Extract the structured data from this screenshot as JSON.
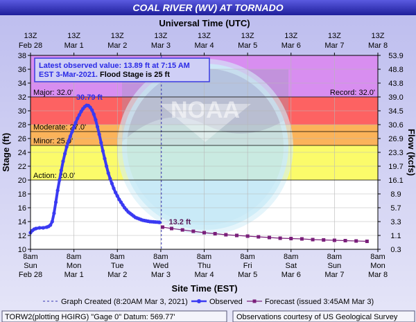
{
  "chart_data": {
    "type": "line",
    "title": "COAL RIVER (WV) AT TORNADO",
    "top_axis_title": "Universal Time (UTC)",
    "xlabel": "Site Time (EST)",
    "ylabel": "Stage (ft)",
    "y2label": "Flow (kcfs)",
    "ylim": [
      10,
      38
    ],
    "y_ticks": [
      10,
      12,
      14,
      16,
      18,
      20,
      22,
      24,
      26,
      28,
      30,
      32,
      34,
      36,
      38
    ],
    "x_unit": "hours since 8am Sun Feb 28 (EST)",
    "xlim": [
      0,
      192
    ],
    "grid": true,
    "bottom_ticks": [
      {
        "hour": 0,
        "l1": "8am",
        "l2": "Sun",
        "l3": "Feb 28"
      },
      {
        "hour": 24,
        "l1": "8am",
        "l2": "Mon",
        "l3": "Mar 1"
      },
      {
        "hour": 48,
        "l1": "8am",
        "l2": "Tue",
        "l3": "Mar 2"
      },
      {
        "hour": 72,
        "l1": "8am",
        "l2": "Wed",
        "l3": "Mar 3"
      },
      {
        "hour": 96,
        "l1": "8am",
        "l2": "Thu",
        "l3": "Mar 4"
      },
      {
        "hour": 120,
        "l1": "8am",
        "l2": "Fri",
        "l3": "Mar 5"
      },
      {
        "hour": 144,
        "l1": "8am",
        "l2": "Sat",
        "l3": "Mar 6"
      },
      {
        "hour": 168,
        "l1": "8am",
        "l2": "Sun",
        "l3": "Mar 7"
      },
      {
        "hour": 192,
        "l1": "8am",
        "l2": "Mon",
        "l3": "Mar 8"
      }
    ],
    "top_ticks": [
      {
        "hour": 0,
        "l1": "13Z",
        "l2": "Feb 28"
      },
      {
        "hour": 24,
        "l1": "13Z",
        "l2": "Mar 1"
      },
      {
        "hour": 48,
        "l1": "13Z",
        "l2": "Mar 2"
      },
      {
        "hour": 72,
        "l1": "13Z",
        "l2": "Mar 3"
      },
      {
        "hour": 96,
        "l1": "13Z",
        "l2": "Mar 4"
      },
      {
        "hour": 120,
        "l1": "13Z",
        "l2": "Mar 5"
      },
      {
        "hour": 144,
        "l1": "13Z",
        "l2": "Mar 6"
      },
      {
        "hour": 168,
        "l1": "13Z",
        "l2": "Mar 7"
      },
      {
        "hour": 192,
        "l1": "13Z",
        "l2": "Mar 8"
      }
    ],
    "flow_ticks": [
      {
        "stage": 10,
        "label": "0.3"
      },
      {
        "stage": 12,
        "label": "1.1"
      },
      {
        "stage": 14,
        "label": "3.3"
      },
      {
        "stage": 16,
        "label": "5.7"
      },
      {
        "stage": 18,
        "label": "8.9"
      },
      {
        "stage": 20,
        "label": "16.1"
      },
      {
        "stage": 22,
        "label": "19.7"
      },
      {
        "stage": 24,
        "label": "23.3"
      },
      {
        "stage": 26,
        "label": "26.9"
      },
      {
        "stage": 28,
        "label": "30.6"
      },
      {
        "stage": 30,
        "label": "34.5"
      },
      {
        "stage": 32,
        "label": "39.0"
      },
      {
        "stage": 34,
        "label": "43.8"
      },
      {
        "stage": 36,
        "label": "48.8"
      },
      {
        "stage": 38,
        "label": "53.9"
      }
    ],
    "flood_bands": [
      {
        "name": "Record",
        "from": 32,
        "to": 38,
        "color": "#d88ef0"
      },
      {
        "name": "Major",
        "from": 28,
        "to": 32,
        "color": "#fd6262"
      },
      {
        "name": "Moderate",
        "from": 25,
        "to": 28,
        "color": "#fbb35a"
      },
      {
        "name": "Minor",
        "from": 20,
        "to": 25,
        "color": "#fbfb6a"
      }
    ],
    "threshold_labels": [
      {
        "text": "Major: 32.0'",
        "stage": 32,
        "side": "left"
      },
      {
        "text": "Moderate: 27.0'",
        "stage": 27,
        "side": "left"
      },
      {
        "text": "Minor: 25.0'",
        "stage": 25,
        "side": "left"
      },
      {
        "text": "Action: 20.0'",
        "stage": 20,
        "side": "left"
      },
      {
        "text": "Record: 32.0'",
        "stage": 32,
        "side": "right"
      }
    ],
    "info_box": {
      "line1": "Latest observed value: 13.89 ft at 7:15 AM",
      "line2_a": "EST 3-Mar-2021.",
      "line2_b": " Flood Stage is 25 ft"
    },
    "created_hour": 72.33,
    "series": [
      {
        "name": "Observed",
        "color": "#3a3af2",
        "x": [
          0,
          1,
          2,
          3,
          5,
          7,
          9,
          10,
          11,
          12,
          13,
          14,
          15,
          16,
          17,
          18,
          19,
          20,
          21,
          22,
          23,
          24,
          25,
          26,
          27,
          28,
          29,
          30,
          31,
          32,
          33,
          34,
          35,
          36,
          37,
          38,
          39,
          40,
          41,
          42,
          43,
          44,
          45,
          46,
          47,
          48,
          49,
          50,
          51,
          52,
          53,
          54,
          55,
          56,
          57,
          58,
          59,
          60,
          61,
          62,
          63,
          64,
          65,
          66,
          67,
          68,
          69,
          70,
          71,
          71.25
        ],
        "y": [
          12.4,
          12.7,
          12.9,
          13.0,
          13.1,
          13.1,
          13.2,
          13.3,
          13.5,
          14.0,
          15.2,
          16.8,
          18.5,
          20.0,
          21.4,
          22.7,
          23.8,
          24.8,
          25.6,
          26.3,
          27.0,
          27.6,
          28.3,
          28.9,
          29.4,
          29.9,
          30.3,
          30.6,
          30.79,
          30.75,
          30.5,
          30.1,
          29.5,
          28.7,
          27.7,
          26.6,
          25.4,
          24.2,
          23.1,
          22.0,
          21.0,
          20.2,
          19.5,
          18.8,
          18.2,
          17.7,
          17.2,
          16.8,
          16.4,
          16.0,
          15.7,
          15.4,
          15.2,
          15.0,
          14.8,
          14.6,
          14.5,
          14.4,
          14.3,
          14.2,
          14.15,
          14.1,
          14.05,
          14.0,
          13.98,
          13.96,
          13.94,
          13.92,
          13.9,
          13.89
        ]
      },
      {
        "name": "Forecast (issued 3:45AM Mar 3)",
        "color": "#7a1f7a",
        "x": [
          73,
          78,
          84,
          90,
          96,
          102,
          108,
          114,
          120,
          126,
          132,
          138,
          144,
          150,
          156,
          162,
          168,
          174,
          180,
          186
        ],
        "y": [
          13.2,
          13.0,
          12.8,
          12.6,
          12.4,
          12.25,
          12.1,
          12.0,
          11.9,
          11.8,
          11.7,
          11.6,
          11.55,
          11.5,
          11.4,
          11.35,
          11.3,
          11.25,
          11.2,
          11.15
        ]
      }
    ],
    "annotations": [
      {
        "text": "30.79 ft",
        "hour": 31,
        "stage": 30.79
      },
      {
        "text": "13.2 ft",
        "hour": 73,
        "stage": 13.2
      }
    ],
    "legend": {
      "graph_created": "Graph Created (8:20AM Mar 3, 2021)",
      "observed": "Observed",
      "forecast": "Forecast (issued 3:45AM Mar 3)"
    },
    "footer": {
      "left": "TORW2(plotting HGIRG) \"Gage 0\" Datum:  569.77'",
      "right": "Observations courtesy of US Geological Survey"
    },
    "colors": {
      "header_bg": "#3535c0",
      "plot_bg": "#ffffff",
      "observed": "#3a3af2",
      "forecast": "#7a1f7a",
      "watermark": "#bfe6f6"
    }
  }
}
